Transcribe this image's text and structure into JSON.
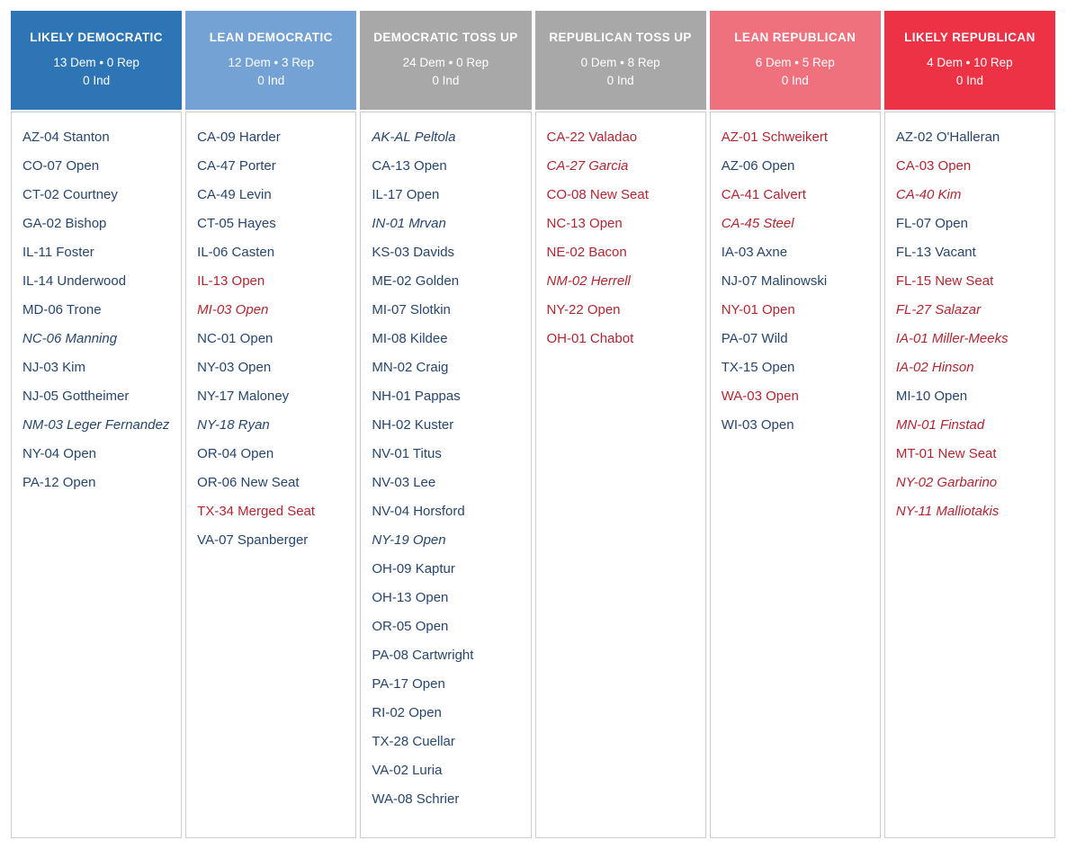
{
  "colors": {
    "dem_text": "#26466f",
    "rep_text": "#b12631",
    "header_likely_dem": "#2e75b6",
    "header_lean_dem": "#74a2d4",
    "header_tossup": "#a8a8a8",
    "header_lean_rep": "#f0717e",
    "header_likely_rep": "#ed3246",
    "body_border": "#cccccc"
  },
  "chart_data": {
    "type": "table",
    "categories": [
      "LIKELY DEMOCRATIC",
      "LEAN DEMOCRATIC",
      "DEMOCRATIC TOSS UP",
      "REPUBLICAN TOSS UP",
      "LEAN REPUBLICAN",
      "LIKELY REPUBLICAN"
    ],
    "series": [
      {
        "name": "Dem",
        "values": [
          13,
          12,
          24,
          0,
          6,
          4
        ]
      },
      {
        "name": "Rep",
        "values": [
          0,
          3,
          0,
          8,
          5,
          10
        ]
      },
      {
        "name": "Ind",
        "values": [
          0,
          0,
          0,
          0,
          0,
          0
        ]
      }
    ],
    "legend_position": "none",
    "grid": false
  },
  "columns": [
    {
      "id": "likely-democratic",
      "title": "LIKELY DEMOCRATIC",
      "counts_line1": "13 Dem • 0 Rep",
      "counts_line2": "0 Ind",
      "header_bg": "#2e75b6",
      "races": [
        {
          "label": "AZ-04 Stanton",
          "party": "dem",
          "italic": false
        },
        {
          "label": "CO-07 Open",
          "party": "dem",
          "italic": false
        },
        {
          "label": "CT-02 Courtney",
          "party": "dem",
          "italic": false
        },
        {
          "label": "GA-02 Bishop",
          "party": "dem",
          "italic": false
        },
        {
          "label": "IL-11 Foster",
          "party": "dem",
          "italic": false
        },
        {
          "label": "IL-14 Underwood",
          "party": "dem",
          "italic": false
        },
        {
          "label": "MD-06 Trone",
          "party": "dem",
          "italic": false
        },
        {
          "label": "NC-06 Manning",
          "party": "dem",
          "italic": true
        },
        {
          "label": "NJ-03 Kim",
          "party": "dem",
          "italic": false
        },
        {
          "label": "NJ-05 Gottheimer",
          "party": "dem",
          "italic": false
        },
        {
          "label": "NM-03 Leger Fernandez",
          "party": "dem",
          "italic": true
        },
        {
          "label": "NY-04 Open",
          "party": "dem",
          "italic": false
        },
        {
          "label": "PA-12 Open",
          "party": "dem",
          "italic": false
        }
      ]
    },
    {
      "id": "lean-democratic",
      "title": "LEAN DEMOCRATIC",
      "counts_line1": "12 Dem • 3 Rep",
      "counts_line2": "0 Ind",
      "header_bg": "#74a2d4",
      "races": [
        {
          "label": "CA-09 Harder",
          "party": "dem",
          "italic": false
        },
        {
          "label": "CA-47 Porter",
          "party": "dem",
          "italic": false
        },
        {
          "label": "CA-49 Levin",
          "party": "dem",
          "italic": false
        },
        {
          "label": "CT-05 Hayes",
          "party": "dem",
          "italic": false
        },
        {
          "label": "IL-06 Casten",
          "party": "dem",
          "italic": false
        },
        {
          "label": "IL-13 Open",
          "party": "rep",
          "italic": false
        },
        {
          "label": "MI-03 Open",
          "party": "rep",
          "italic": true
        },
        {
          "label": "NC-01 Open",
          "party": "dem",
          "italic": false
        },
        {
          "label": "NY-03 Open",
          "party": "dem",
          "italic": false
        },
        {
          "label": "NY-17 Maloney",
          "party": "dem",
          "italic": false
        },
        {
          "label": "NY-18 Ryan",
          "party": "dem",
          "italic": true
        },
        {
          "label": "OR-04 Open",
          "party": "dem",
          "italic": false
        },
        {
          "label": "OR-06 New Seat",
          "party": "dem",
          "italic": false
        },
        {
          "label": "TX-34 Merged Seat",
          "party": "rep",
          "italic": false
        },
        {
          "label": "VA-07 Spanberger",
          "party": "dem",
          "italic": false
        }
      ]
    },
    {
      "id": "democratic-toss-up",
      "title": "DEMOCRATIC TOSS UP",
      "counts_line1": "24 Dem • 0 Rep",
      "counts_line2": "0 Ind",
      "header_bg": "#a8a8a8",
      "races": [
        {
          "label": "AK-AL Peltola",
          "party": "dem",
          "italic": true
        },
        {
          "label": "CA-13 Open",
          "party": "dem",
          "italic": false
        },
        {
          "label": "IL-17 Open",
          "party": "dem",
          "italic": false
        },
        {
          "label": "IN-01 Mrvan",
          "party": "dem",
          "italic": true
        },
        {
          "label": "KS-03 Davids",
          "party": "dem",
          "italic": false
        },
        {
          "label": "ME-02 Golden",
          "party": "dem",
          "italic": false
        },
        {
          "label": "MI-07 Slotkin",
          "party": "dem",
          "italic": false
        },
        {
          "label": "MI-08 Kildee",
          "party": "dem",
          "italic": false
        },
        {
          "label": "MN-02 Craig",
          "party": "dem",
          "italic": false
        },
        {
          "label": "NH-01 Pappas",
          "party": "dem",
          "italic": false
        },
        {
          "label": "NH-02 Kuster",
          "party": "dem",
          "italic": false
        },
        {
          "label": "NV-01 Titus",
          "party": "dem",
          "italic": false
        },
        {
          "label": "NV-03 Lee",
          "party": "dem",
          "italic": false
        },
        {
          "label": "NV-04 Horsford",
          "party": "dem",
          "italic": false
        },
        {
          "label": "NY-19 Open",
          "party": "dem",
          "italic": true
        },
        {
          "label": "OH-09 Kaptur",
          "party": "dem",
          "italic": false
        },
        {
          "label": "OH-13 Open",
          "party": "dem",
          "italic": false
        },
        {
          "label": "OR-05 Open",
          "party": "dem",
          "italic": false
        },
        {
          "label": "PA-08 Cartwright",
          "party": "dem",
          "italic": false
        },
        {
          "label": "PA-17 Open",
          "party": "dem",
          "italic": false
        },
        {
          "label": "RI-02 Open",
          "party": "dem",
          "italic": false
        },
        {
          "label": "TX-28 Cuellar",
          "party": "dem",
          "italic": false
        },
        {
          "label": "VA-02 Luria",
          "party": "dem",
          "italic": false
        },
        {
          "label": "WA-08 Schrier",
          "party": "dem",
          "italic": false
        }
      ]
    },
    {
      "id": "republican-toss-up",
      "title": "REPUBLICAN TOSS UP",
      "counts_line1": "0 Dem • 8 Rep",
      "counts_line2": "0 Ind",
      "header_bg": "#a8a8a8",
      "races": [
        {
          "label": "CA-22 Valadao",
          "party": "rep",
          "italic": false
        },
        {
          "label": "CA-27 Garcia",
          "party": "rep",
          "italic": true
        },
        {
          "label": "CO-08 New Seat",
          "party": "rep",
          "italic": false
        },
        {
          "label": "NC-13 Open",
          "party": "rep",
          "italic": false
        },
        {
          "label": "NE-02 Bacon",
          "party": "rep",
          "italic": false
        },
        {
          "label": "NM-02 Herrell",
          "party": "rep",
          "italic": true
        },
        {
          "label": "NY-22 Open",
          "party": "rep",
          "italic": false
        },
        {
          "label": "OH-01 Chabot",
          "party": "rep",
          "italic": false
        }
      ]
    },
    {
      "id": "lean-republican",
      "title": "LEAN REPUBLICAN",
      "counts_line1": "6 Dem • 5 Rep",
      "counts_line2": "0 Ind",
      "header_bg": "#f0717e",
      "races": [
        {
          "label": "AZ-01 Schweikert",
          "party": "rep",
          "italic": false
        },
        {
          "label": "AZ-06 Open",
          "party": "dem",
          "italic": false
        },
        {
          "label": "CA-41 Calvert",
          "party": "rep",
          "italic": false
        },
        {
          "label": "CA-45 Steel",
          "party": "rep",
          "italic": true
        },
        {
          "label": "IA-03 Axne",
          "party": "dem",
          "italic": false
        },
        {
          "label": "NJ-07 Malinowski",
          "party": "dem",
          "italic": false
        },
        {
          "label": "NY-01 Open",
          "party": "rep",
          "italic": false
        },
        {
          "label": "PA-07 Wild",
          "party": "dem",
          "italic": false
        },
        {
          "label": "TX-15 Open",
          "party": "dem",
          "italic": false
        },
        {
          "label": "WA-03 Open",
          "party": "rep",
          "italic": false
        },
        {
          "label": "WI-03 Open",
          "party": "dem",
          "italic": false
        }
      ]
    },
    {
      "id": "likely-republican",
      "title": "LIKELY REPUBLICAN",
      "counts_line1": "4 Dem • 10 Rep",
      "counts_line2": "0 Ind",
      "header_bg": "#ed3246",
      "races": [
        {
          "label": "AZ-02 O'Halleran",
          "party": "dem",
          "italic": false
        },
        {
          "label": "CA-03 Open",
          "party": "rep",
          "italic": false
        },
        {
          "label": "CA-40 Kim",
          "party": "rep",
          "italic": true
        },
        {
          "label": "FL-07 Open",
          "party": "dem",
          "italic": false
        },
        {
          "label": "FL-13 Vacant",
          "party": "dem",
          "italic": false
        },
        {
          "label": "FL-15 New Seat",
          "party": "rep",
          "italic": false
        },
        {
          "label": "FL-27 Salazar",
          "party": "rep",
          "italic": true
        },
        {
          "label": "IA-01 Miller-Meeks",
          "party": "rep",
          "italic": true
        },
        {
          "label": "IA-02 Hinson",
          "party": "rep",
          "italic": true
        },
        {
          "label": "MI-10 Open",
          "party": "dem",
          "italic": false
        },
        {
          "label": "MN-01 Finstad",
          "party": "rep",
          "italic": true
        },
        {
          "label": "MT-01 New Seat",
          "party": "rep",
          "italic": false
        },
        {
          "label": "NY-02 Garbarino",
          "party": "rep",
          "italic": true
        },
        {
          "label": "NY-11 Malliotakis",
          "party": "rep",
          "italic": true
        }
      ]
    }
  ]
}
